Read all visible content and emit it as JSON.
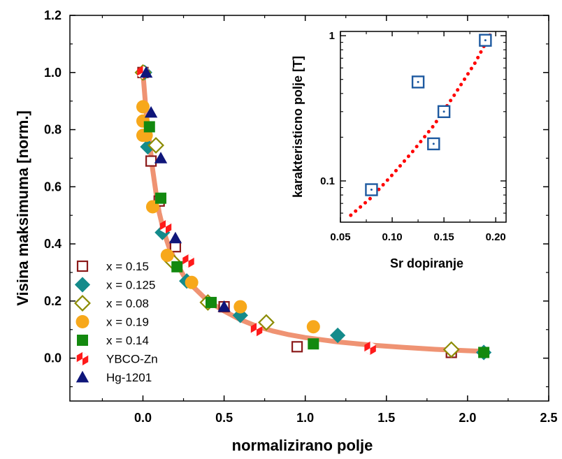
{
  "chart_data": [
    {
      "type": "scatter",
      "xlabel": "normalizirano polje",
      "ylabel": "Visina maksimuma [norm.]",
      "xlim": [
        -0.45,
        2.5
      ],
      "ylim": [
        -0.15,
        1.2
      ],
      "xticks": [
        "0.0",
        "0.5",
        "1.0",
        "1.5",
        "2.0",
        "2.5"
      ],
      "xtick_values": [
        0,
        0.5,
        1.0,
        1.5,
        2.0,
        2.5
      ],
      "yticks": [
        "0.0",
        "0.2",
        "0.4",
        "0.6",
        "0.8",
        "1.0",
        "1.2"
      ],
      "ytick_values": [
        0,
        0.2,
        0.4,
        0.6,
        0.8,
        1.0,
        1.2
      ],
      "legend_position": "bottom-left",
      "fit_curve": {
        "color": "#ef9373",
        "x": [
          0,
          0.01,
          0.02,
          0.04,
          0.06,
          0.08,
          0.1,
          0.13,
          0.16,
          0.2,
          0.25,
          0.3,
          0.4,
          0.5,
          0.6,
          0.7,
          0.8,
          0.9,
          1.0,
          1.2,
          1.4,
          1.6,
          1.8,
          2.0,
          2.1
        ],
        "y": [
          1.0,
          0.93,
          0.86,
          0.76,
          0.66,
          0.58,
          0.51,
          0.44,
          0.39,
          0.34,
          0.29,
          0.255,
          0.2,
          0.165,
          0.135,
          0.112,
          0.095,
          0.082,
          0.072,
          0.057,
          0.046,
          0.038,
          0.031,
          0.026,
          0.024
        ]
      },
      "series": [
        {
          "name": "x = 0.15",
          "marker": "square-open",
          "color": "#8b1a1a",
          "x": [
            0.0,
            0.05,
            0.1,
            0.2,
            0.5,
            0.95,
            1.9
          ],
          "y": [
            1.0,
            0.69,
            0.55,
            0.39,
            0.18,
            0.04,
            0.02
          ]
        },
        {
          "name": "x = 0.125",
          "marker": "diamond",
          "color": "#148b8b",
          "x": [
            0.01,
            0.03,
            0.12,
            0.27,
            0.6,
            1.2,
            2.1
          ],
          "y": [
            1.0,
            0.74,
            0.44,
            0.27,
            0.15,
            0.08,
            0.02
          ]
        },
        {
          "name": "x = 0.08",
          "marker": "diamond-open",
          "color": "#8b8b00",
          "x": [
            0.0,
            0.08,
            0.18,
            0.4,
            0.76,
            1.9
          ],
          "y": [
            1.0,
            0.745,
            0.34,
            0.195,
            0.125,
            0.03
          ]
        },
        {
          "name": "x = 0.19",
          "marker": "circle",
          "color": "#f7a81b",
          "x": [
            0.0,
            0.0,
            0.0,
            0.02,
            0.06,
            0.15,
            0.3,
            0.6,
            1.05
          ],
          "y": [
            0.88,
            0.83,
            0.78,
            0.78,
            0.53,
            0.36,
            0.265,
            0.18,
            0.11
          ]
        },
        {
          "name": "x = 0.14",
          "marker": "square",
          "color": "#13890f",
          "x": [
            0.04,
            0.11,
            0.21,
            0.42,
            1.05,
            2.1
          ],
          "y": [
            0.81,
            0.56,
            0.32,
            0.195,
            0.05,
            0.02
          ]
        },
        {
          "name": "YBCO-Zn",
          "marker": "hexagon-split",
          "color": "#ff1a1a",
          "x": [
            0.0,
            0.14,
            0.28,
            0.7,
            1.4
          ],
          "y": [
            1.0,
            0.46,
            0.34,
            0.1,
            0.035
          ]
        },
        {
          "name": "Hg-1201",
          "marker": "triangle",
          "color": "#0f167a",
          "x": [
            0.02,
            0.05,
            0.11,
            0.2,
            0.5
          ],
          "y": [
            1.0,
            0.86,
            0.7,
            0.42,
            0.18
          ]
        }
      ]
    },
    {
      "type": "scatter",
      "xlabel": "Sr dopiranje",
      "ylabel": "karakteristicno polje [T]",
      "yscale": "log",
      "xlim": [
        0.05,
        0.21
      ],
      "ylim": [
        0.052,
        1.07
      ],
      "xticks": [
        "0.05",
        "0.10",
        "0.15",
        "0.20"
      ],
      "xtick_values": [
        0.05,
        0.1,
        0.15,
        0.2
      ],
      "yticks": [
        "0.1",
        "1"
      ],
      "ytick_values": [
        0.1,
        1
      ],
      "fit_curve": {
        "color": "#ff0000",
        "style": "dotted",
        "x": [
          0.06,
          0.08,
          0.1,
          0.12,
          0.14,
          0.16,
          0.18,
          0.195
        ],
        "y": [
          0.058,
          0.077,
          0.11,
          0.16,
          0.24,
          0.39,
          0.65,
          1.03
        ]
      },
      "series": [
        {
          "marker": "square-open-dot",
          "color": "#1e5aa0",
          "x": [
            0.08,
            0.125,
            0.14,
            0.15,
            0.19
          ],
          "y": [
            0.087,
            0.48,
            0.18,
            0.3,
            0.93
          ]
        }
      ]
    }
  ]
}
